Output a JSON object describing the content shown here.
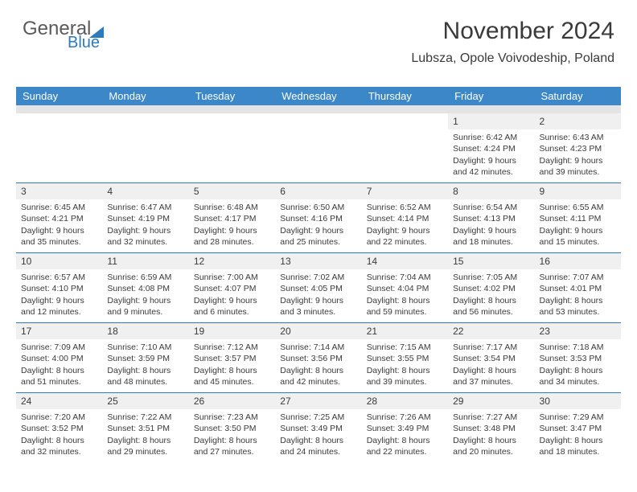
{
  "logo": {
    "text1": "General",
    "text2": "Blue"
  },
  "header": {
    "month_title": "November 2024",
    "location": "Lubsza, Opole Voivodeship, Poland"
  },
  "colors": {
    "header_bg": "#3b87c8",
    "header_text": "#ffffff",
    "gray_strip": "#e4e4e4",
    "week_divider": "#2b7bbf",
    "daynum_bg": "#f0f0f0",
    "text": "#3a3a3a",
    "logo_blue": "#2b7bbf",
    "logo_gray": "#5a5a5a"
  },
  "day_names": [
    "Sunday",
    "Monday",
    "Tuesday",
    "Wednesday",
    "Thursday",
    "Friday",
    "Saturday"
  ],
  "weeks": [
    [
      {
        "n": "",
        "sr": "",
        "ss": "",
        "dl1": "",
        "dl2": ""
      },
      {
        "n": "",
        "sr": "",
        "ss": "",
        "dl1": "",
        "dl2": ""
      },
      {
        "n": "",
        "sr": "",
        "ss": "",
        "dl1": "",
        "dl2": ""
      },
      {
        "n": "",
        "sr": "",
        "ss": "",
        "dl1": "",
        "dl2": ""
      },
      {
        "n": "",
        "sr": "",
        "ss": "",
        "dl1": "",
        "dl2": ""
      },
      {
        "n": "1",
        "sr": "Sunrise: 6:42 AM",
        "ss": "Sunset: 4:24 PM",
        "dl1": "Daylight: 9 hours",
        "dl2": "and 42 minutes."
      },
      {
        "n": "2",
        "sr": "Sunrise: 6:43 AM",
        "ss": "Sunset: 4:23 PM",
        "dl1": "Daylight: 9 hours",
        "dl2": "and 39 minutes."
      }
    ],
    [
      {
        "n": "3",
        "sr": "Sunrise: 6:45 AM",
        "ss": "Sunset: 4:21 PM",
        "dl1": "Daylight: 9 hours",
        "dl2": "and 35 minutes."
      },
      {
        "n": "4",
        "sr": "Sunrise: 6:47 AM",
        "ss": "Sunset: 4:19 PM",
        "dl1": "Daylight: 9 hours",
        "dl2": "and 32 minutes."
      },
      {
        "n": "5",
        "sr": "Sunrise: 6:48 AM",
        "ss": "Sunset: 4:17 PM",
        "dl1": "Daylight: 9 hours",
        "dl2": "and 28 minutes."
      },
      {
        "n": "6",
        "sr": "Sunrise: 6:50 AM",
        "ss": "Sunset: 4:16 PM",
        "dl1": "Daylight: 9 hours",
        "dl2": "and 25 minutes."
      },
      {
        "n": "7",
        "sr": "Sunrise: 6:52 AM",
        "ss": "Sunset: 4:14 PM",
        "dl1": "Daylight: 9 hours",
        "dl2": "and 22 minutes."
      },
      {
        "n": "8",
        "sr": "Sunrise: 6:54 AM",
        "ss": "Sunset: 4:13 PM",
        "dl1": "Daylight: 9 hours",
        "dl2": "and 18 minutes."
      },
      {
        "n": "9",
        "sr": "Sunrise: 6:55 AM",
        "ss": "Sunset: 4:11 PM",
        "dl1": "Daylight: 9 hours",
        "dl2": "and 15 minutes."
      }
    ],
    [
      {
        "n": "10",
        "sr": "Sunrise: 6:57 AM",
        "ss": "Sunset: 4:10 PM",
        "dl1": "Daylight: 9 hours",
        "dl2": "and 12 minutes."
      },
      {
        "n": "11",
        "sr": "Sunrise: 6:59 AM",
        "ss": "Sunset: 4:08 PM",
        "dl1": "Daylight: 9 hours",
        "dl2": "and 9 minutes."
      },
      {
        "n": "12",
        "sr": "Sunrise: 7:00 AM",
        "ss": "Sunset: 4:07 PM",
        "dl1": "Daylight: 9 hours",
        "dl2": "and 6 minutes."
      },
      {
        "n": "13",
        "sr": "Sunrise: 7:02 AM",
        "ss": "Sunset: 4:05 PM",
        "dl1": "Daylight: 9 hours",
        "dl2": "and 3 minutes."
      },
      {
        "n": "14",
        "sr": "Sunrise: 7:04 AM",
        "ss": "Sunset: 4:04 PM",
        "dl1": "Daylight: 8 hours",
        "dl2": "and 59 minutes."
      },
      {
        "n": "15",
        "sr": "Sunrise: 7:05 AM",
        "ss": "Sunset: 4:02 PM",
        "dl1": "Daylight: 8 hours",
        "dl2": "and 56 minutes."
      },
      {
        "n": "16",
        "sr": "Sunrise: 7:07 AM",
        "ss": "Sunset: 4:01 PM",
        "dl1": "Daylight: 8 hours",
        "dl2": "and 53 minutes."
      }
    ],
    [
      {
        "n": "17",
        "sr": "Sunrise: 7:09 AM",
        "ss": "Sunset: 4:00 PM",
        "dl1": "Daylight: 8 hours",
        "dl2": "and 51 minutes."
      },
      {
        "n": "18",
        "sr": "Sunrise: 7:10 AM",
        "ss": "Sunset: 3:59 PM",
        "dl1": "Daylight: 8 hours",
        "dl2": "and 48 minutes."
      },
      {
        "n": "19",
        "sr": "Sunrise: 7:12 AM",
        "ss": "Sunset: 3:57 PM",
        "dl1": "Daylight: 8 hours",
        "dl2": "and 45 minutes."
      },
      {
        "n": "20",
        "sr": "Sunrise: 7:14 AM",
        "ss": "Sunset: 3:56 PM",
        "dl1": "Daylight: 8 hours",
        "dl2": "and 42 minutes."
      },
      {
        "n": "21",
        "sr": "Sunrise: 7:15 AM",
        "ss": "Sunset: 3:55 PM",
        "dl1": "Daylight: 8 hours",
        "dl2": "and 39 minutes."
      },
      {
        "n": "22",
        "sr": "Sunrise: 7:17 AM",
        "ss": "Sunset: 3:54 PM",
        "dl1": "Daylight: 8 hours",
        "dl2": "and 37 minutes."
      },
      {
        "n": "23",
        "sr": "Sunrise: 7:18 AM",
        "ss": "Sunset: 3:53 PM",
        "dl1": "Daylight: 8 hours",
        "dl2": "and 34 minutes."
      }
    ],
    [
      {
        "n": "24",
        "sr": "Sunrise: 7:20 AM",
        "ss": "Sunset: 3:52 PM",
        "dl1": "Daylight: 8 hours",
        "dl2": "and 32 minutes."
      },
      {
        "n": "25",
        "sr": "Sunrise: 7:22 AM",
        "ss": "Sunset: 3:51 PM",
        "dl1": "Daylight: 8 hours",
        "dl2": "and 29 minutes."
      },
      {
        "n": "26",
        "sr": "Sunrise: 7:23 AM",
        "ss": "Sunset: 3:50 PM",
        "dl1": "Daylight: 8 hours",
        "dl2": "and 27 minutes."
      },
      {
        "n": "27",
        "sr": "Sunrise: 7:25 AM",
        "ss": "Sunset: 3:49 PM",
        "dl1": "Daylight: 8 hours",
        "dl2": "and 24 minutes."
      },
      {
        "n": "28",
        "sr": "Sunrise: 7:26 AM",
        "ss": "Sunset: 3:49 PM",
        "dl1": "Daylight: 8 hours",
        "dl2": "and 22 minutes."
      },
      {
        "n": "29",
        "sr": "Sunrise: 7:27 AM",
        "ss": "Sunset: 3:48 PM",
        "dl1": "Daylight: 8 hours",
        "dl2": "and 20 minutes."
      },
      {
        "n": "30",
        "sr": "Sunrise: 7:29 AM",
        "ss": "Sunset: 3:47 PM",
        "dl1": "Daylight: 8 hours",
        "dl2": "and 18 minutes."
      }
    ]
  ]
}
